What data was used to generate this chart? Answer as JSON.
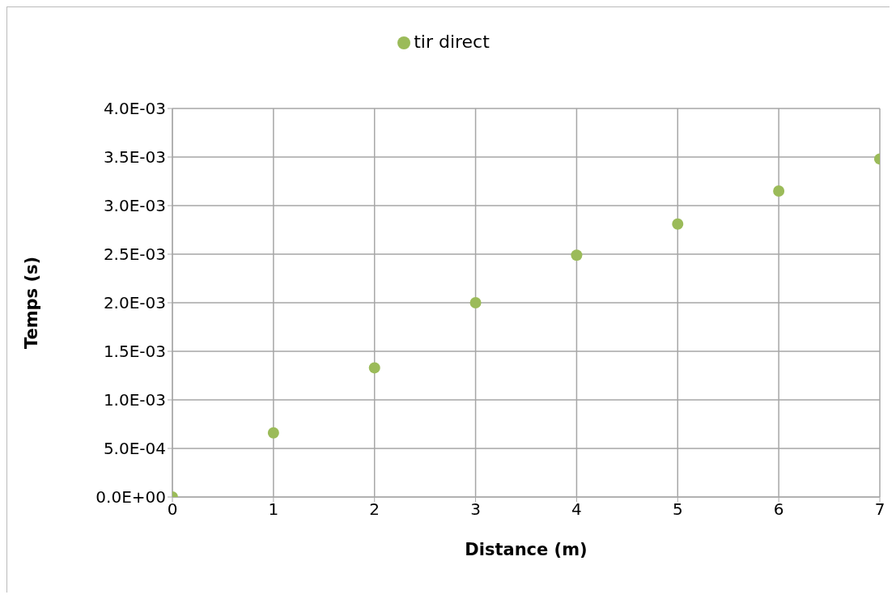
{
  "chart_data": {
    "type": "scatter",
    "xlabel": "Distance (m)",
    "ylabel": "Temps (s)",
    "x": [
      0,
      1,
      2,
      3,
      4,
      5,
      6,
      7
    ],
    "series": [
      {
        "name": "tir direct",
        "color": "#9bbb59",
        "values": [
          0,
          0.00066,
          0.00133,
          0.002,
          0.00249,
          0.00281,
          0.00315,
          0.00348
        ]
      }
    ],
    "xlim": [
      0,
      7
    ],
    "xticks": [
      0,
      1,
      2,
      3,
      4,
      5,
      6,
      7
    ],
    "ylim": [
      0,
      0.004
    ],
    "yticks": [
      {
        "value": 0,
        "label": "0.0E+00"
      },
      {
        "value": 0.0005,
        "label": "5.0E-04"
      },
      {
        "value": 0.001,
        "label": "1.0E-03"
      },
      {
        "value": 0.0015,
        "label": "1.5E-03"
      },
      {
        "value": 0.002,
        "label": "2.0E-03"
      },
      {
        "value": 0.0025,
        "label": "2.5E-03"
      },
      {
        "value": 0.003,
        "label": "3.0E-03"
      },
      {
        "value": 0.0035,
        "label": "3.5E-03"
      },
      {
        "value": 0.004,
        "label": "4.0E-03"
      }
    ],
    "grid": true,
    "legend": "top",
    "marker": "circle"
  }
}
